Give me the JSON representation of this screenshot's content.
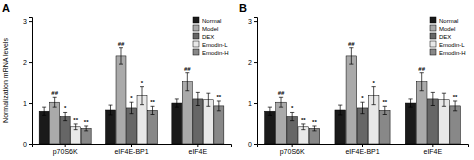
{
  "chart_data": [
    {
      "type": "bar",
      "title": "A",
      "ylabel": "Normalization mRNA levels",
      "categories": [
        "p70S6K",
        "eIF4E-BP1",
        "eIF4E"
      ],
      "series": [
        {
          "name": "Normal",
          "color": "#1a1a1a",
          "values": [
            0.8,
            0.83,
            1.0
          ],
          "errors": [
            0.1,
            0.12,
            0.1
          ]
        },
        {
          "name": "Model",
          "color": "#aaaaaa",
          "values": [
            1.02,
            2.15,
            1.52
          ],
          "errors": [
            0.12,
            0.2,
            0.22
          ],
          "annotations": [
            "##",
            "##",
            "##"
          ]
        },
        {
          "name": "DEX",
          "color": "#666666",
          "values": [
            0.67,
            0.88,
            1.1
          ],
          "errors": [
            0.1,
            0.14,
            0.16
          ],
          "annotations": [
            "*",
            "*",
            null
          ]
        },
        {
          "name": "Emodin-L",
          "color": "#e8e8e8",
          "values": [
            0.42,
            1.18,
            1.08
          ],
          "errors": [
            0.07,
            0.22,
            0.16
          ],
          "annotations": [
            "**",
            "*",
            null
          ]
        },
        {
          "name": "Emodin-H",
          "color": "#888888",
          "values": [
            0.38,
            0.82,
            0.93
          ],
          "errors": [
            0.06,
            0.1,
            0.12
          ],
          "annotations": [
            "**",
            "**",
            "**"
          ]
        }
      ],
      "ylim": [
        0,
        3.1
      ],
      "yticks": [
        0,
        1,
        2,
        3
      ],
      "grid": false,
      "legend": "upper right"
    },
    {
      "type": "bar",
      "title": "B",
      "categories": [
        "p70S6K",
        "eIF4E-BP1",
        "eIF4E"
      ],
      "series": [
        {
          "name": "Normal",
          "color": "#1a1a1a",
          "values": [
            0.8,
            0.83,
            1.0
          ],
          "errors": [
            0.1,
            0.12,
            0.1
          ]
        },
        {
          "name": "Model",
          "color": "#aaaaaa",
          "values": [
            1.02,
            2.15,
            1.52
          ],
          "errors": [
            0.12,
            0.2,
            0.22
          ],
          "annotations": [
            "##",
            "##",
            "##"
          ]
        },
        {
          "name": "DEX",
          "color": "#666666",
          "values": [
            0.67,
            0.88,
            1.1
          ],
          "errors": [
            0.1,
            0.14,
            0.16
          ],
          "annotations": [
            "*",
            "*",
            null
          ]
        },
        {
          "name": "Emodin-L",
          "color": "#e8e8e8",
          "values": [
            0.42,
            1.18,
            1.08
          ],
          "errors": [
            0.07,
            0.22,
            0.16
          ],
          "annotations": [
            "**",
            "*",
            null
          ]
        },
        {
          "name": "Emodin-H",
          "color": "#888888",
          "values": [
            0.38,
            0.82,
            0.93
          ],
          "errors": [
            0.06,
            0.1,
            0.12
          ],
          "annotations": [
            "**",
            "**",
            "**"
          ]
        }
      ],
      "ylim": [
        0,
        3.1
      ],
      "yticks": [
        0,
        1,
        2,
        3
      ],
      "grid": false,
      "legend": "upper right"
    }
  ]
}
